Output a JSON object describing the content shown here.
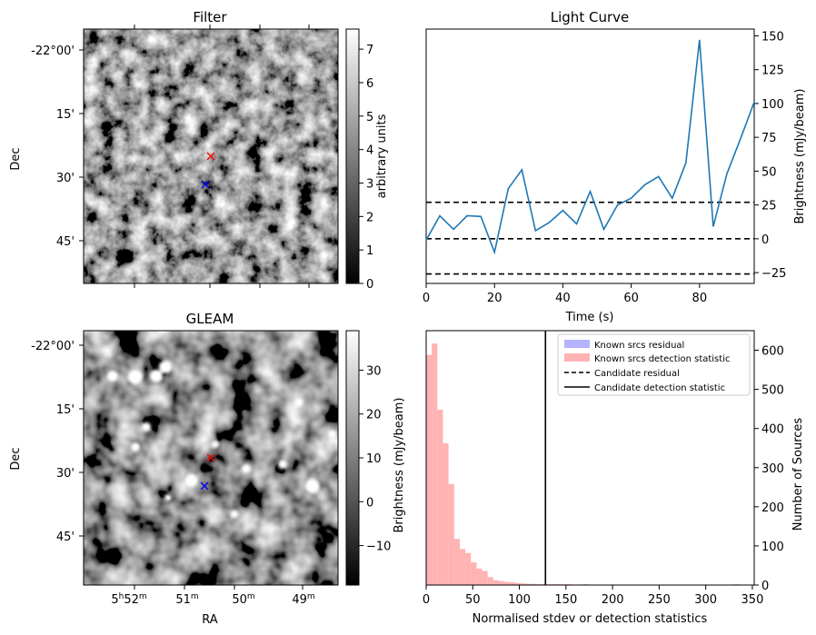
{
  "chart_data": [
    {
      "type": "heatmap",
      "title": "Filter",
      "ylabel": "Dec",
      "y_tick_labels": [
        "-22°00'",
        "15'",
        "30'",
        "45'"
      ],
      "colorbar": {
        "label": "arbitrary units",
        "ticks": [
          0,
          1,
          2,
          3,
          4,
          5,
          6,
          7
        ],
        "range": [
          0,
          7.6
        ],
        "colormap": "gray"
      },
      "markers": [
        {
          "name": "candidate",
          "symbol": "x",
          "color": "#ff0000"
        },
        {
          "name": "reference",
          "symbol": "x",
          "color": "#0000ff"
        }
      ]
    },
    {
      "type": "line",
      "title": "Light Curve",
      "xlabel": "Time (s)",
      "ylabel": "Brightness (mJy/beam)",
      "xlim": [
        0,
        96
      ],
      "ylim": [
        -33,
        155
      ],
      "x_ticks": [
        0,
        20,
        40,
        60,
        80
      ],
      "y_ticks": [
        -25,
        0,
        25,
        50,
        75,
        100,
        125,
        150
      ],
      "series": [
        {
          "color": "#1f77b4",
          "x": [
            0,
            4,
            8,
            12,
            16,
            20,
            24,
            28,
            32,
            36,
            40,
            44,
            48,
            52,
            56,
            60,
            64,
            68,
            72,
            76,
            80,
            84,
            88,
            92,
            96
          ],
          "values": [
            -1,
            17,
            7,
            17,
            16.5,
            -10,
            37,
            51,
            6,
            12,
            21,
            11,
            35,
            7,
            25,
            30,
            40,
            46,
            30,
            56,
            147,
            9,
            48,
            74,
            101
          ]
        }
      ],
      "hlines": [
        {
          "y": 27,
          "style": "dashed",
          "color": "#000000"
        },
        {
          "y": 0,
          "style": "dashed",
          "color": "#000000"
        },
        {
          "y": -26,
          "style": "dashed",
          "color": "#000000"
        }
      ]
    },
    {
      "type": "heatmap",
      "title": "GLEAM",
      "xlabel": "RA",
      "ylabel": "Dec",
      "x_tick_labels": [
        {
          "main": "5",
          "sup1": "h",
          "mid": "52",
          "sup2": "m"
        },
        {
          "main": "51",
          "sup1": "",
          "mid": "",
          "sup2": "m"
        },
        {
          "main": "50",
          "sup1": "",
          "mid": "",
          "sup2": "m"
        },
        {
          "main": "49",
          "sup1": "",
          "mid": "",
          "sup2": "m"
        }
      ],
      "y_tick_labels": [
        "-22°00'",
        "15'",
        "30'",
        "45'"
      ],
      "colorbar": {
        "label": "Brightness (mJy/beam)",
        "ticks": [
          -10,
          0,
          10,
          20,
          30
        ],
        "range": [
          -19,
          39
        ],
        "colormap": "gray"
      },
      "markers": [
        {
          "name": "candidate",
          "symbol": "x",
          "color": "#ff0000"
        },
        {
          "name": "reference",
          "symbol": "x",
          "color": "#0000ff"
        }
      ]
    },
    {
      "type": "bar",
      "xlabel": "Normalised stdev or detection statistics",
      "ylabel": "Number of Sources",
      "xlim": [
        0,
        352
      ],
      "ylim": [
        0,
        650
      ],
      "x_ticks": [
        0,
        50,
        100,
        150,
        200,
        250,
        300,
        350
      ],
      "y_ticks": [
        0,
        100,
        200,
        300,
        400,
        500,
        600
      ],
      "legend": {
        "placement": "top-right",
        "entries": [
          {
            "label": "Known srcs residual",
            "kind": "patch",
            "color": "#b3b3ff"
          },
          {
            "label": "Known srcs detection statistic",
            "kind": "patch",
            "color": "#ffb3b3"
          },
          {
            "label": "Candidate residual",
            "kind": "dashed",
            "color": "#000000"
          },
          {
            "label": "Candidate detection statistic",
            "kind": "solid",
            "color": "#000000"
          }
        ]
      },
      "series": [
        {
          "name": "Known srcs detection statistic",
          "color": "#ffb3b3",
          "bin_width": 6,
          "bin_starts": [
            0,
            6,
            12,
            18,
            24,
            30,
            36,
            42,
            48,
            54,
            60,
            66,
            72,
            78,
            84,
            90,
            96,
            102,
            108,
            114,
            120,
            126,
            132,
            138,
            144,
            150,
            156,
            162,
            168,
            174,
            180,
            186,
            192,
            198,
            204,
            210,
            216,
            222,
            228,
            234,
            240,
            246,
            252,
            258,
            264,
            270,
            276,
            282,
            288,
            294,
            300,
            306,
            312,
            318,
            324,
            330,
            336,
            342
          ],
          "values": [
            588,
            617,
            448,
            362,
            258,
            118,
            92,
            82,
            58,
            42,
            36,
            20,
            12,
            10,
            8,
            7,
            5,
            4,
            3,
            3,
            2,
            2,
            2,
            2,
            2,
            2,
            1,
            1,
            2,
            1,
            1,
            1,
            1,
            1,
            1,
            1,
            1,
            1,
            1,
            1,
            1,
            1,
            1,
            1,
            1,
            1,
            1,
            1,
            1,
            1,
            1,
            1,
            1,
            1,
            1,
            2,
            1,
            1
          ]
        }
      ],
      "vlines": [
        {
          "name": "Candidate detection statistic",
          "x": 128,
          "style": "solid",
          "color": "#000000"
        }
      ]
    }
  ],
  "bottom_right_left_label": "Brightness (mJy/beam)"
}
